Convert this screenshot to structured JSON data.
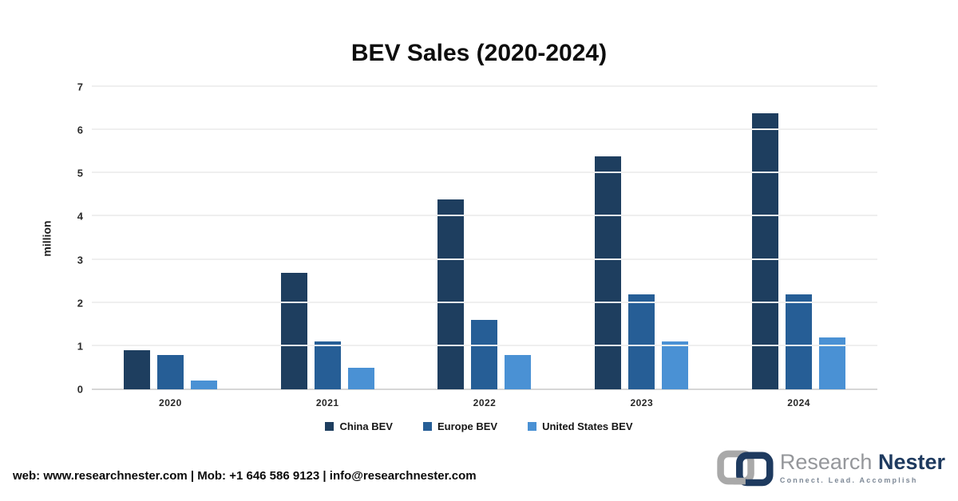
{
  "title": "BEV Sales (2020-2024)",
  "chart_data": {
    "type": "bar",
    "title": "BEV Sales (2020-2024)",
    "categories": [
      "2020",
      "2021",
      "2022",
      "2023",
      "2024"
    ],
    "series": [
      {
        "name": "China BEV",
        "color": "#1e3e5f",
        "values": [
          0.9,
          2.7,
          4.4,
          5.4,
          6.4
        ]
      },
      {
        "name": "Europe BEV",
        "color": "#265e96",
        "values": [
          0.8,
          1.1,
          1.6,
          2.2,
          2.2
        ]
      },
      {
        "name": "United States BEV",
        "color": "#4a91d4",
        "values": [
          0.2,
          0.5,
          0.8,
          1.1,
          1.2
        ]
      }
    ],
    "xlabel": "",
    "ylabel": "million",
    "ylim": [
      0,
      7
    ],
    "yticks": [
      0,
      1,
      2,
      3,
      4,
      5,
      6,
      7
    ],
    "grid": true,
    "legend_position": "bottom"
  },
  "footer": {
    "contact": "web: www.researchnester.com | Mob: +1 646 586 9123 | info@researchnester.com",
    "logo": {
      "brand_primary": "Research",
      "brand_secondary": "Nester",
      "tagline": "Connect. Lead. Accomplish"
    }
  }
}
